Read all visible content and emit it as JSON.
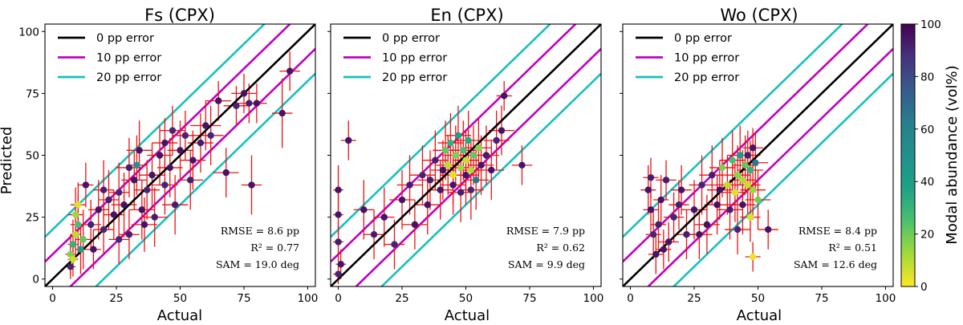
{
  "chart_data": [
    {
      "type": "scatter",
      "title": "Fs (CPX)",
      "xlabel": "Actual",
      "ylabel": "Predicted",
      "xlim": [
        -3,
        103
      ],
      "ylim": [
        -3,
        103
      ],
      "xticks": [
        "0",
        "25",
        "50",
        "75",
        "100"
      ],
      "yticks": [
        "0",
        "25",
        "50",
        "75",
        "100"
      ],
      "legend": {
        "position": "top-left",
        "entries": [
          {
            "label": "0 pp error",
            "color": "#000000"
          },
          {
            "label": "10 pp error",
            "color": "#bf00bf"
          },
          {
            "label": "20 pp error",
            "color": "#17bfbf"
          }
        ]
      },
      "stats": [
        "RMSE = 8.6 pp",
        "R² = 0.77",
        "SAM = 19.0 deg"
      ],
      "points": [
        {
          "x": 7,
          "y": 10,
          "xerr": 2,
          "yerr": 8,
          "c": 20
        },
        {
          "x": 8,
          "y": 14,
          "xerr": 2,
          "yerr": 10,
          "c": 35
        },
        {
          "x": 9,
          "y": 18,
          "xerr": 2,
          "yerr": 9,
          "c": 10
        },
        {
          "x": 10,
          "y": 22,
          "xerr": 3,
          "yerr": 12,
          "c": 30
        },
        {
          "x": 8,
          "y": 8,
          "xerr": 2,
          "yerr": 7,
          "c": 8
        },
        {
          "x": 11,
          "y": 12,
          "xerr": 2,
          "yerr": 10,
          "c": 45
        },
        {
          "x": 9,
          "y": 26,
          "xerr": 3,
          "yerr": 11,
          "c": 15
        },
        {
          "x": 7,
          "y": 5,
          "xerr": 2,
          "yerr": 5,
          "c": 90
        },
        {
          "x": 12,
          "y": 16,
          "xerr": 3,
          "yerr": 12,
          "c": 25
        },
        {
          "x": 10,
          "y": 30,
          "xerr": 3,
          "yerr": 9,
          "c": 5
        },
        {
          "x": 13,
          "y": 38,
          "xerr": 3,
          "yerr": 9,
          "c": 95
        },
        {
          "x": 15,
          "y": 22,
          "xerr": 4,
          "yerr": 10,
          "c": 90
        },
        {
          "x": 18,
          "y": 28,
          "xerr": 4,
          "yerr": 12,
          "c": 95
        },
        {
          "x": 20,
          "y": 20,
          "xerr": 4,
          "yerr": 10,
          "c": 90
        },
        {
          "x": 22,
          "y": 32,
          "xerr": 4,
          "yerr": 12,
          "c": 92
        },
        {
          "x": 24,
          "y": 26,
          "xerr": 4,
          "yerr": 10,
          "c": 95
        },
        {
          "x": 26,
          "y": 35,
          "xerr": 4,
          "yerr": 12,
          "c": 90
        },
        {
          "x": 28,
          "y": 30,
          "xerr": 5,
          "yerr": 13,
          "c": 95
        },
        {
          "x": 30,
          "y": 18,
          "xerr": 4,
          "yerr": 10,
          "c": 92
        },
        {
          "x": 32,
          "y": 40,
          "xerr": 5,
          "yerr": 12,
          "c": 95
        },
        {
          "x": 33,
          "y": 46,
          "xerr": 4,
          "yerr": 12,
          "c": 50
        },
        {
          "x": 35,
          "y": 28,
          "xerr": 5,
          "yerr": 12,
          "c": 95
        },
        {
          "x": 37,
          "y": 36,
          "xerr": 5,
          "yerr": 12,
          "c": 90
        },
        {
          "x": 39,
          "y": 42,
          "xerr": 5,
          "yerr": 13,
          "c": 95
        },
        {
          "x": 40,
          "y": 25,
          "xerr": 5,
          "yerr": 12,
          "c": 92
        },
        {
          "x": 42,
          "y": 50,
          "xerr": 5,
          "yerr": 12,
          "c": 95
        },
        {
          "x": 44,
          "y": 38,
          "xerr": 5,
          "yerr": 12,
          "c": 90
        },
        {
          "x": 46,
          "y": 45,
          "xerr": 5,
          "yerr": 12,
          "c": 95
        },
        {
          "x": 48,
          "y": 30,
          "xerr": 5,
          "yerr": 12,
          "c": 92
        },
        {
          "x": 50,
          "y": 52,
          "xerr": 5,
          "yerr": 12,
          "c": 95
        },
        {
          "x": 52,
          "y": 58,
          "xerr": 5,
          "yerr": 10,
          "c": 90
        },
        {
          "x": 55,
          "y": 48,
          "xerr": 5,
          "yerr": 12,
          "c": 95
        },
        {
          "x": 58,
          "y": 55,
          "xerr": 5,
          "yerr": 12,
          "c": 92
        },
        {
          "x": 60,
          "y": 62,
          "xerr": 6,
          "yerr": 10,
          "c": 95
        },
        {
          "x": 62,
          "y": 58,
          "xerr": 5,
          "yerr": 12,
          "c": 90
        },
        {
          "x": 65,
          "y": 72,
          "xerr": 5,
          "yerr": 8,
          "c": 95
        },
        {
          "x": 68,
          "y": 43,
          "xerr": 5,
          "yerr": 10,
          "c": 95
        },
        {
          "x": 72,
          "y": 70,
          "xerr": 5,
          "yerr": 8,
          "c": 90
        },
        {
          "x": 75,
          "y": 75,
          "xerr": 5,
          "yerr": 8,
          "c": 95
        },
        {
          "x": 77,
          "y": 71,
          "xerr": 5,
          "yerr": 8,
          "c": 92
        },
        {
          "x": 78,
          "y": 38,
          "xerr": 4,
          "yerr": 12,
          "c": 95
        },
        {
          "x": 80,
          "y": 71,
          "xerr": 4,
          "yerr": 8,
          "c": 95
        },
        {
          "x": 90,
          "y": 67,
          "xerr": 4,
          "yerr": 14,
          "c": 95
        },
        {
          "x": 93,
          "y": 84,
          "xerr": 4,
          "yerr": 8,
          "c": 95
        },
        {
          "x": 30,
          "y": 45,
          "xerr": 5,
          "yerr": 12,
          "c": 92
        },
        {
          "x": 44,
          "y": 55,
          "xerr": 5,
          "yerr": 10,
          "c": 95
        },
        {
          "x": 20,
          "y": 36,
          "xerr": 4,
          "yerr": 12,
          "c": 92
        },
        {
          "x": 26,
          "y": 16,
          "xerr": 4,
          "yerr": 10,
          "c": 90
        },
        {
          "x": 36,
          "y": 22,
          "xerr": 5,
          "yerr": 11,
          "c": 95
        },
        {
          "x": 54,
          "y": 40,
          "xerr": 5,
          "yerr": 12,
          "c": 92
        },
        {
          "x": 16,
          "y": 12,
          "xerr": 3,
          "yerr": 8,
          "c": 95
        },
        {
          "x": 47,
          "y": 60,
          "xerr": 5,
          "yerr": 10,
          "c": 90
        },
        {
          "x": 34,
          "y": 52,
          "xerr": 5,
          "yerr": 12,
          "c": 95
        }
      ]
    },
    {
      "type": "scatter",
      "title": "En (CPX)",
      "xlabel": "Actual",
      "xlim": [
        -3,
        103
      ],
      "ylim": [
        -3,
        103
      ],
      "xticks": [
        "0",
        "25",
        "50",
        "75",
        "100"
      ],
      "legend": {
        "position": "top-left",
        "entries": [
          {
            "label": "0 pp error",
            "color": "#000000"
          },
          {
            "label": "10 pp error",
            "color": "#bf00bf"
          },
          {
            "label": "20 pp error",
            "color": "#17bfbf"
          }
        ]
      },
      "stats": [
        "RMSE = 7.9 pp",
        "R² = 0.62",
        "SAM = 9.9 deg"
      ],
      "points": [
        {
          "x": 0,
          "y": 36,
          "xerr": 2,
          "yerr": 10,
          "c": 95
        },
        {
          "x": 0,
          "y": 26,
          "xerr": 2,
          "yerr": 8,
          "c": 95
        },
        {
          "x": 0,
          "y": 15,
          "xerr": 2,
          "yerr": 8,
          "c": 92
        },
        {
          "x": 1,
          "y": 6,
          "xerr": 2,
          "yerr": 6,
          "c": 95
        },
        {
          "x": 0,
          "y": 2,
          "xerr": 2,
          "yerr": 4,
          "c": 90
        },
        {
          "x": 4,
          "y": 56,
          "xerr": 3,
          "yerr": 8,
          "c": 95
        },
        {
          "x": 10,
          "y": 28,
          "xerr": 4,
          "yerr": 12,
          "c": 95
        },
        {
          "x": 14,
          "y": 18,
          "xerr": 4,
          "yerr": 10,
          "c": 92
        },
        {
          "x": 18,
          "y": 25,
          "xerr": 4,
          "yerr": 12,
          "c": 95
        },
        {
          "x": 22,
          "y": 14,
          "xerr": 4,
          "yerr": 10,
          "c": 90
        },
        {
          "x": 25,
          "y": 32,
          "xerr": 5,
          "yerr": 12,
          "c": 95
        },
        {
          "x": 28,
          "y": 38,
          "xerr": 5,
          "yerr": 12,
          "c": 92
        },
        {
          "x": 30,
          "y": 22,
          "xerr": 5,
          "yerr": 10,
          "c": 95
        },
        {
          "x": 33,
          "y": 42,
          "xerr": 5,
          "yerr": 12,
          "c": 90
        },
        {
          "x": 35,
          "y": 30,
          "xerr": 5,
          "yerr": 12,
          "c": 95
        },
        {
          "x": 38,
          "y": 48,
          "xerr": 5,
          "yerr": 12,
          "c": 92
        },
        {
          "x": 40,
          "y": 36,
          "xerr": 5,
          "yerr": 12,
          "c": 95
        },
        {
          "x": 42,
          "y": 52,
          "xerr": 5,
          "yerr": 12,
          "c": 25
        },
        {
          "x": 43,
          "y": 46,
          "xerr": 5,
          "yerr": 12,
          "c": 10
        },
        {
          "x": 44,
          "y": 55,
          "xerr": 5,
          "yerr": 12,
          "c": 35
        },
        {
          "x": 45,
          "y": 42,
          "xerr": 5,
          "yerr": 12,
          "c": 5
        },
        {
          "x": 46,
          "y": 50,
          "xerr": 5,
          "yerr": 12,
          "c": 20
        },
        {
          "x": 47,
          "y": 58,
          "xerr": 5,
          "yerr": 12,
          "c": 45
        },
        {
          "x": 48,
          "y": 45,
          "xerr": 5,
          "yerr": 12,
          "c": 15
        },
        {
          "x": 49,
          "y": 52,
          "xerr": 5,
          "yerr": 12,
          "c": 30
        },
        {
          "x": 50,
          "y": 48,
          "xerr": 5,
          "yerr": 12,
          "c": 8
        },
        {
          "x": 51,
          "y": 56,
          "xerr": 5,
          "yerr": 12,
          "c": 40
        },
        {
          "x": 52,
          "y": 44,
          "xerr": 5,
          "yerr": 12,
          "c": 12
        },
        {
          "x": 53,
          "y": 50,
          "xerr": 5,
          "yerr": 12,
          "c": 25
        },
        {
          "x": 54,
          "y": 40,
          "xerr": 5,
          "yerr": 12,
          "c": 60
        },
        {
          "x": 55,
          "y": 53,
          "xerr": 5,
          "yerr": 12,
          "c": 18
        },
        {
          "x": 45,
          "y": 38,
          "xerr": 5,
          "yerr": 12,
          "c": 95
        },
        {
          "x": 48,
          "y": 35,
          "xerr": 5,
          "yerr": 12,
          "c": 92
        },
        {
          "x": 50,
          "y": 42,
          "xerr": 5,
          "yerr": 12,
          "c": 95
        },
        {
          "x": 52,
          "y": 36,
          "xerr": 5,
          "yerr": 12,
          "c": 90
        },
        {
          "x": 56,
          "y": 46,
          "xerr": 5,
          "yerr": 12,
          "c": 95
        },
        {
          "x": 58,
          "y": 50,
          "xerr": 5,
          "yerr": 12,
          "c": 92
        },
        {
          "x": 60,
          "y": 44,
          "xerr": 5,
          "yerr": 12,
          "c": 95
        },
        {
          "x": 62,
          "y": 56,
          "xerr": 5,
          "yerr": 12,
          "c": 90
        },
        {
          "x": 64,
          "y": 60,
          "xerr": 5,
          "yerr": 10,
          "c": 95
        },
        {
          "x": 65,
          "y": 74,
          "xerr": 3,
          "yerr": 6,
          "c": 95
        },
        {
          "x": 72,
          "y": 46,
          "xerr": 4,
          "yerr": 8,
          "c": 95
        },
        {
          "x": 41,
          "y": 44,
          "xerr": 5,
          "yerr": 12,
          "c": 95
        },
        {
          "x": 36,
          "y": 40,
          "xerr": 5,
          "yerr": 12,
          "c": 92
        }
      ]
    },
    {
      "type": "scatter",
      "title": "Wo (CPX)",
      "xlabel": "Actual",
      "xlim": [
        -3,
        103
      ],
      "ylim": [
        -3,
        103
      ],
      "xticks": [
        "0",
        "25",
        "50",
        "75",
        "100"
      ],
      "legend": {
        "position": "top-left",
        "entries": [
          {
            "label": "0 pp error",
            "color": "#000000"
          },
          {
            "label": "10 pp error",
            "color": "#bf00bf"
          },
          {
            "label": "20 pp error",
            "color": "#17bfbf"
          }
        ]
      },
      "stats": [
        "RMSE = 8.4 pp",
        "R² = 0.51",
        "SAM = 12.6 deg"
      ],
      "colorbar": {
        "label": "Modal abundance (vol%)",
        "ticks": [
          "0",
          "20",
          "40",
          "60",
          "80",
          "100"
        ],
        "range": [
          0,
          100
        ],
        "colormap": "viridis"
      },
      "points": [
        {
          "x": 7,
          "y": 36,
          "xerr": 3,
          "yerr": 10,
          "c": 95
        },
        {
          "x": 8,
          "y": 41,
          "xerr": 3,
          "yerr": 8,
          "c": 92
        },
        {
          "x": 8,
          "y": 28,
          "xerr": 3,
          "yerr": 10,
          "c": 95
        },
        {
          "x": 9,
          "y": 18,
          "xerr": 3,
          "yerr": 10,
          "c": 90
        },
        {
          "x": 10,
          "y": 10,
          "xerr": 3,
          "yerr": 8,
          "c": 95
        },
        {
          "x": 11,
          "y": 22,
          "xerr": 3,
          "yerr": 10,
          "c": 92
        },
        {
          "x": 12,
          "y": 32,
          "xerr": 3,
          "yerr": 10,
          "c": 95
        },
        {
          "x": 14,
          "y": 40,
          "xerr": 4,
          "yerr": 8,
          "c": 92
        },
        {
          "x": 15,
          "y": 15,
          "xerr": 4,
          "yerr": 8,
          "c": 95
        },
        {
          "x": 17,
          "y": 25,
          "xerr": 4,
          "yerr": 10,
          "c": 90
        },
        {
          "x": 20,
          "y": 36,
          "xerr": 4,
          "yerr": 10,
          "c": 95
        },
        {
          "x": 22,
          "y": 18,
          "xerr": 4,
          "yerr": 10,
          "c": 92
        },
        {
          "x": 25,
          "y": 28,
          "xerr": 5,
          "yerr": 12,
          "c": 95
        },
        {
          "x": 28,
          "y": 38,
          "xerr": 5,
          "yerr": 12,
          "c": 90
        },
        {
          "x": 30,
          "y": 22,
          "xerr": 5,
          "yerr": 12,
          "c": 95
        },
        {
          "x": 32,
          "y": 42,
          "xerr": 5,
          "yerr": 12,
          "c": 92
        },
        {
          "x": 34,
          "y": 30,
          "xerr": 5,
          "yerr": 12,
          "c": 95
        },
        {
          "x": 36,
          "y": 45,
          "xerr": 5,
          "yerr": 12,
          "c": 20
        },
        {
          "x": 38,
          "y": 38,
          "xerr": 5,
          "yerr": 12,
          "c": 10
        },
        {
          "x": 40,
          "y": 48,
          "xerr": 5,
          "yerr": 12,
          "c": 30
        },
        {
          "x": 41,
          "y": 35,
          "xerr": 5,
          "yerr": 12,
          "c": 5
        },
        {
          "x": 42,
          "y": 42,
          "xerr": 5,
          "yerr": 12,
          "c": 18
        },
        {
          "x": 43,
          "y": 50,
          "xerr": 5,
          "yerr": 12,
          "c": 45
        },
        {
          "x": 44,
          "y": 40,
          "xerr": 5,
          "yerr": 12,
          "c": 12
        },
        {
          "x": 45,
          "y": 46,
          "xerr": 5,
          "yerr": 12,
          "c": 25
        },
        {
          "x": 46,
          "y": 38,
          "xerr": 5,
          "yerr": 12,
          "c": 8
        },
        {
          "x": 47,
          "y": 44,
          "xerr": 5,
          "yerr": 12,
          "c": 35
        },
        {
          "x": 48,
          "y": 36,
          "xerr": 5,
          "yerr": 12,
          "c": 15
        },
        {
          "x": 49,
          "y": 47,
          "xerr": 5,
          "yerr": 12,
          "c": 60
        },
        {
          "x": 50,
          "y": 32,
          "xerr": 5,
          "yerr": 12,
          "c": 22
        },
        {
          "x": 47,
          "y": 25,
          "xerr": 4,
          "yerr": 10,
          "c": 5
        },
        {
          "x": 48,
          "y": 9,
          "xerr": 3,
          "yerr": 6,
          "c": 3
        },
        {
          "x": 44,
          "y": 30,
          "xerr": 5,
          "yerr": 12,
          "c": 95
        },
        {
          "x": 46,
          "y": 50,
          "xerr": 5,
          "yerr": 10,
          "c": 92
        },
        {
          "x": 48,
          "y": 53,
          "xerr": 4,
          "yerr": 8,
          "c": 95
        },
        {
          "x": 39,
          "y": 28,
          "xerr": 5,
          "yerr": 12,
          "c": 92
        },
        {
          "x": 35,
          "y": 36,
          "xerr": 5,
          "yerr": 12,
          "c": 95
        },
        {
          "x": 54,
          "y": 20,
          "xerr": 4,
          "yerr": 8,
          "c": 95
        },
        {
          "x": 42,
          "y": 20,
          "xerr": 5,
          "yerr": 10,
          "c": 90
        },
        {
          "x": 27,
          "y": 18,
          "xerr": 5,
          "yerr": 10,
          "c": 95
        },
        {
          "x": 19,
          "y": 30,
          "xerr": 4,
          "yerr": 10,
          "c": 92
        },
        {
          "x": 13,
          "y": 12,
          "xerr": 3,
          "yerr": 8,
          "c": 95
        }
      ]
    }
  ]
}
